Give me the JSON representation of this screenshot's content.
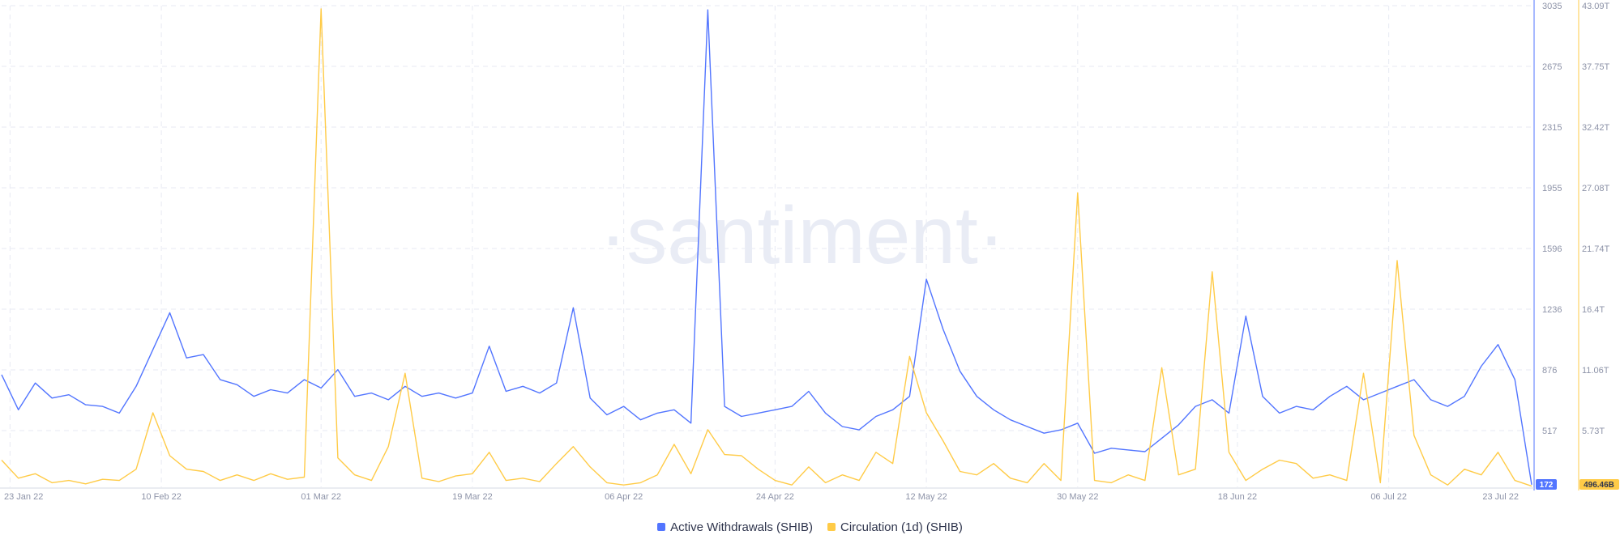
{
  "watermark": "·santiment·",
  "legend": {
    "series_a": "Active Withdrawals (SHIB)",
    "series_b": "Circulation (1d) (SHIB)"
  },
  "colors": {
    "series_a": "#5275ff",
    "series_b": "#ffcb47",
    "grid": "#e7eaf3",
    "tick_text": "#8d93a8",
    "watermark": "#e9ecf5"
  },
  "chart_data": {
    "type": "line",
    "grid": true,
    "legend_position": "bottom-center",
    "x_ticks": [
      "23 Jan 22",
      "10 Feb 22",
      "01 Mar 22",
      "19 Mar 22",
      "06 Apr 22",
      "24 Apr 22",
      "12 May 22",
      "30 May 22",
      "18 Jun 22",
      "06 Jul 22",
      "23 Jul 22"
    ],
    "y_left": {
      "ticks": [
        "3035",
        "2675",
        "2315",
        "1955",
        "1596",
        "1236",
        "876",
        "517"
      ],
      "range": [
        157,
        3035
      ],
      "last_value": "172"
    },
    "y_right": {
      "ticks": [
        "43.09T",
        "37.75T",
        "32.42T",
        "27.08T",
        "21.74T",
        "16.4T",
        "11.06T",
        "5.73T"
      ],
      "range": [
        0.4,
        43.09
      ],
      "unit": "T",
      "last_value": "496.46B"
    },
    "series": [
      {
        "name": "Active Withdrawals (SHIB)",
        "axis": "left",
        "x": [
          "2022-01-22",
          "2022-01-24",
          "2022-01-26",
          "2022-01-28",
          "2022-01-30",
          "2022-02-01",
          "2022-02-03",
          "2022-02-05",
          "2022-02-07",
          "2022-02-09",
          "2022-02-11",
          "2022-02-13",
          "2022-02-15",
          "2022-02-17",
          "2022-02-19",
          "2022-02-21",
          "2022-02-23",
          "2022-02-25",
          "2022-02-27",
          "2022-03-01",
          "2022-03-03",
          "2022-03-05",
          "2022-03-07",
          "2022-03-09",
          "2022-03-11",
          "2022-03-13",
          "2022-03-15",
          "2022-03-17",
          "2022-03-19",
          "2022-03-21",
          "2022-03-23",
          "2022-03-25",
          "2022-03-27",
          "2022-03-29",
          "2022-03-31",
          "2022-04-02",
          "2022-04-04",
          "2022-04-06",
          "2022-04-08",
          "2022-04-10",
          "2022-04-12",
          "2022-04-14",
          "2022-04-16",
          "2022-04-18",
          "2022-04-20",
          "2022-04-22",
          "2022-04-24",
          "2022-04-26",
          "2022-04-28",
          "2022-04-30",
          "2022-05-02",
          "2022-05-04",
          "2022-05-06",
          "2022-05-08",
          "2022-05-10",
          "2022-05-12",
          "2022-05-14",
          "2022-05-16",
          "2022-05-18",
          "2022-05-20",
          "2022-05-22",
          "2022-05-24",
          "2022-05-26",
          "2022-05-28",
          "2022-05-30",
          "2022-06-01",
          "2022-06-03",
          "2022-06-05",
          "2022-06-07",
          "2022-06-09",
          "2022-06-11",
          "2022-06-13",
          "2022-06-15",
          "2022-06-17",
          "2022-06-19",
          "2022-06-21",
          "2022-06-23",
          "2022-06-25",
          "2022-06-27",
          "2022-06-29",
          "2022-07-01",
          "2022-07-03",
          "2022-07-05",
          "2022-07-07",
          "2022-07-09",
          "2022-07-11",
          "2022-07-13",
          "2022-07-15",
          "2022-07-17",
          "2022-07-19",
          "2022-07-21",
          "2022-07-23"
        ],
        "values": [
          830,
          620,
          780,
          690,
          710,
          650,
          640,
          600,
          760,
          980,
          1200,
          930,
          950,
          800,
          770,
          700,
          740,
          720,
          800,
          750,
          860,
          700,
          720,
          680,
          760,
          700,
          720,
          690,
          720,
          1000,
          730,
          760,
          720,
          780,
          1230,
          690,
          590,
          640,
          560,
          600,
          620,
          540,
          3010,
          640,
          580,
          600,
          620,
          640,
          730,
          600,
          520,
          500,
          580,
          620,
          700,
          1400,
          1100,
          850,
          700,
          620,
          560,
          520,
          480,
          500,
          540,
          360,
          390,
          380,
          370,
          450,
          530,
          640,
          680,
          600,
          1180,
          700,
          600,
          640,
          620,
          700,
          760,
          680,
          720,
          760,
          800,
          680,
          640,
          700,
          880,
          1010,
          800,
          172
        ]
      },
      {
        "name": "Circulation (1d) (SHIB)",
        "axis": "right",
        "x": [
          "2022-01-22",
          "2022-01-24",
          "2022-01-26",
          "2022-01-28",
          "2022-01-30",
          "2022-02-01",
          "2022-02-03",
          "2022-02-05",
          "2022-02-07",
          "2022-02-09",
          "2022-02-11",
          "2022-02-13",
          "2022-02-15",
          "2022-02-17",
          "2022-02-19",
          "2022-02-21",
          "2022-02-23",
          "2022-02-25",
          "2022-02-27",
          "2022-03-01",
          "2022-03-03",
          "2022-03-05",
          "2022-03-07",
          "2022-03-09",
          "2022-03-11",
          "2022-03-13",
          "2022-03-15",
          "2022-03-17",
          "2022-03-19",
          "2022-03-21",
          "2022-03-23",
          "2022-03-25",
          "2022-03-27",
          "2022-03-29",
          "2022-03-31",
          "2022-04-02",
          "2022-04-04",
          "2022-04-06",
          "2022-04-08",
          "2022-04-10",
          "2022-04-12",
          "2022-04-14",
          "2022-04-16",
          "2022-04-18",
          "2022-04-20",
          "2022-04-22",
          "2022-04-24",
          "2022-04-26",
          "2022-04-28",
          "2022-04-30",
          "2022-05-02",
          "2022-05-04",
          "2022-05-06",
          "2022-05-08",
          "2022-05-10",
          "2022-05-12",
          "2022-05-14",
          "2022-05-16",
          "2022-05-18",
          "2022-05-20",
          "2022-05-22",
          "2022-05-24",
          "2022-05-26",
          "2022-05-28",
          "2022-05-30",
          "2022-06-01",
          "2022-06-03",
          "2022-06-05",
          "2022-06-07",
          "2022-06-09",
          "2022-06-11",
          "2022-06-13",
          "2022-06-15",
          "2022-06-17",
          "2022-06-19",
          "2022-06-21",
          "2022-06-23",
          "2022-06-25",
          "2022-06-27",
          "2022-06-29",
          "2022-07-01",
          "2022-07-03",
          "2022-07-05",
          "2022-07-07",
          "2022-07-09",
          "2022-07-11",
          "2022-07-13",
          "2022-07-15",
          "2022-07-17",
          "2022-07-19",
          "2022-07-21",
          "2022-07-23"
        ],
        "values": [
          2.8,
          1.2,
          1.6,
          0.8,
          1.0,
          0.7,
          1.1,
          1.0,
          2.0,
          7.0,
          3.2,
          2.0,
          1.8,
          1.0,
          1.5,
          1.0,
          1.6,
          1.1,
          1.3,
          42.8,
          3.0,
          1.5,
          1.0,
          4.0,
          10.5,
          1.2,
          0.9,
          1.4,
          1.6,
          3.5,
          1.0,
          1.2,
          0.9,
          2.5,
          4.0,
          2.2,
          0.8,
          0.6,
          0.8,
          1.5,
          4.2,
          1.6,
          5.5,
          3.3,
          3.2,
          2.0,
          1.0,
          0.6,
          2.2,
          0.8,
          1.5,
          1.0,
          3.5,
          2.5,
          12.0,
          7.0,
          4.5,
          1.8,
          1.5,
          2.5,
          1.2,
          0.8,
          2.5,
          1.0,
          26.5,
          1.0,
          0.8,
          1.5,
          1.0,
          11.0,
          1.5,
          2.0,
          19.5,
          3.5,
          1.0,
          2.0,
          2.8,
          2.5,
          1.2,
          1.5,
          1.0,
          10.5,
          0.8,
          20.5,
          5.0,
          1.5,
          0.6,
          2.0,
          1.5,
          3.5,
          1.0,
          0.5
        ]
      }
    ]
  }
}
